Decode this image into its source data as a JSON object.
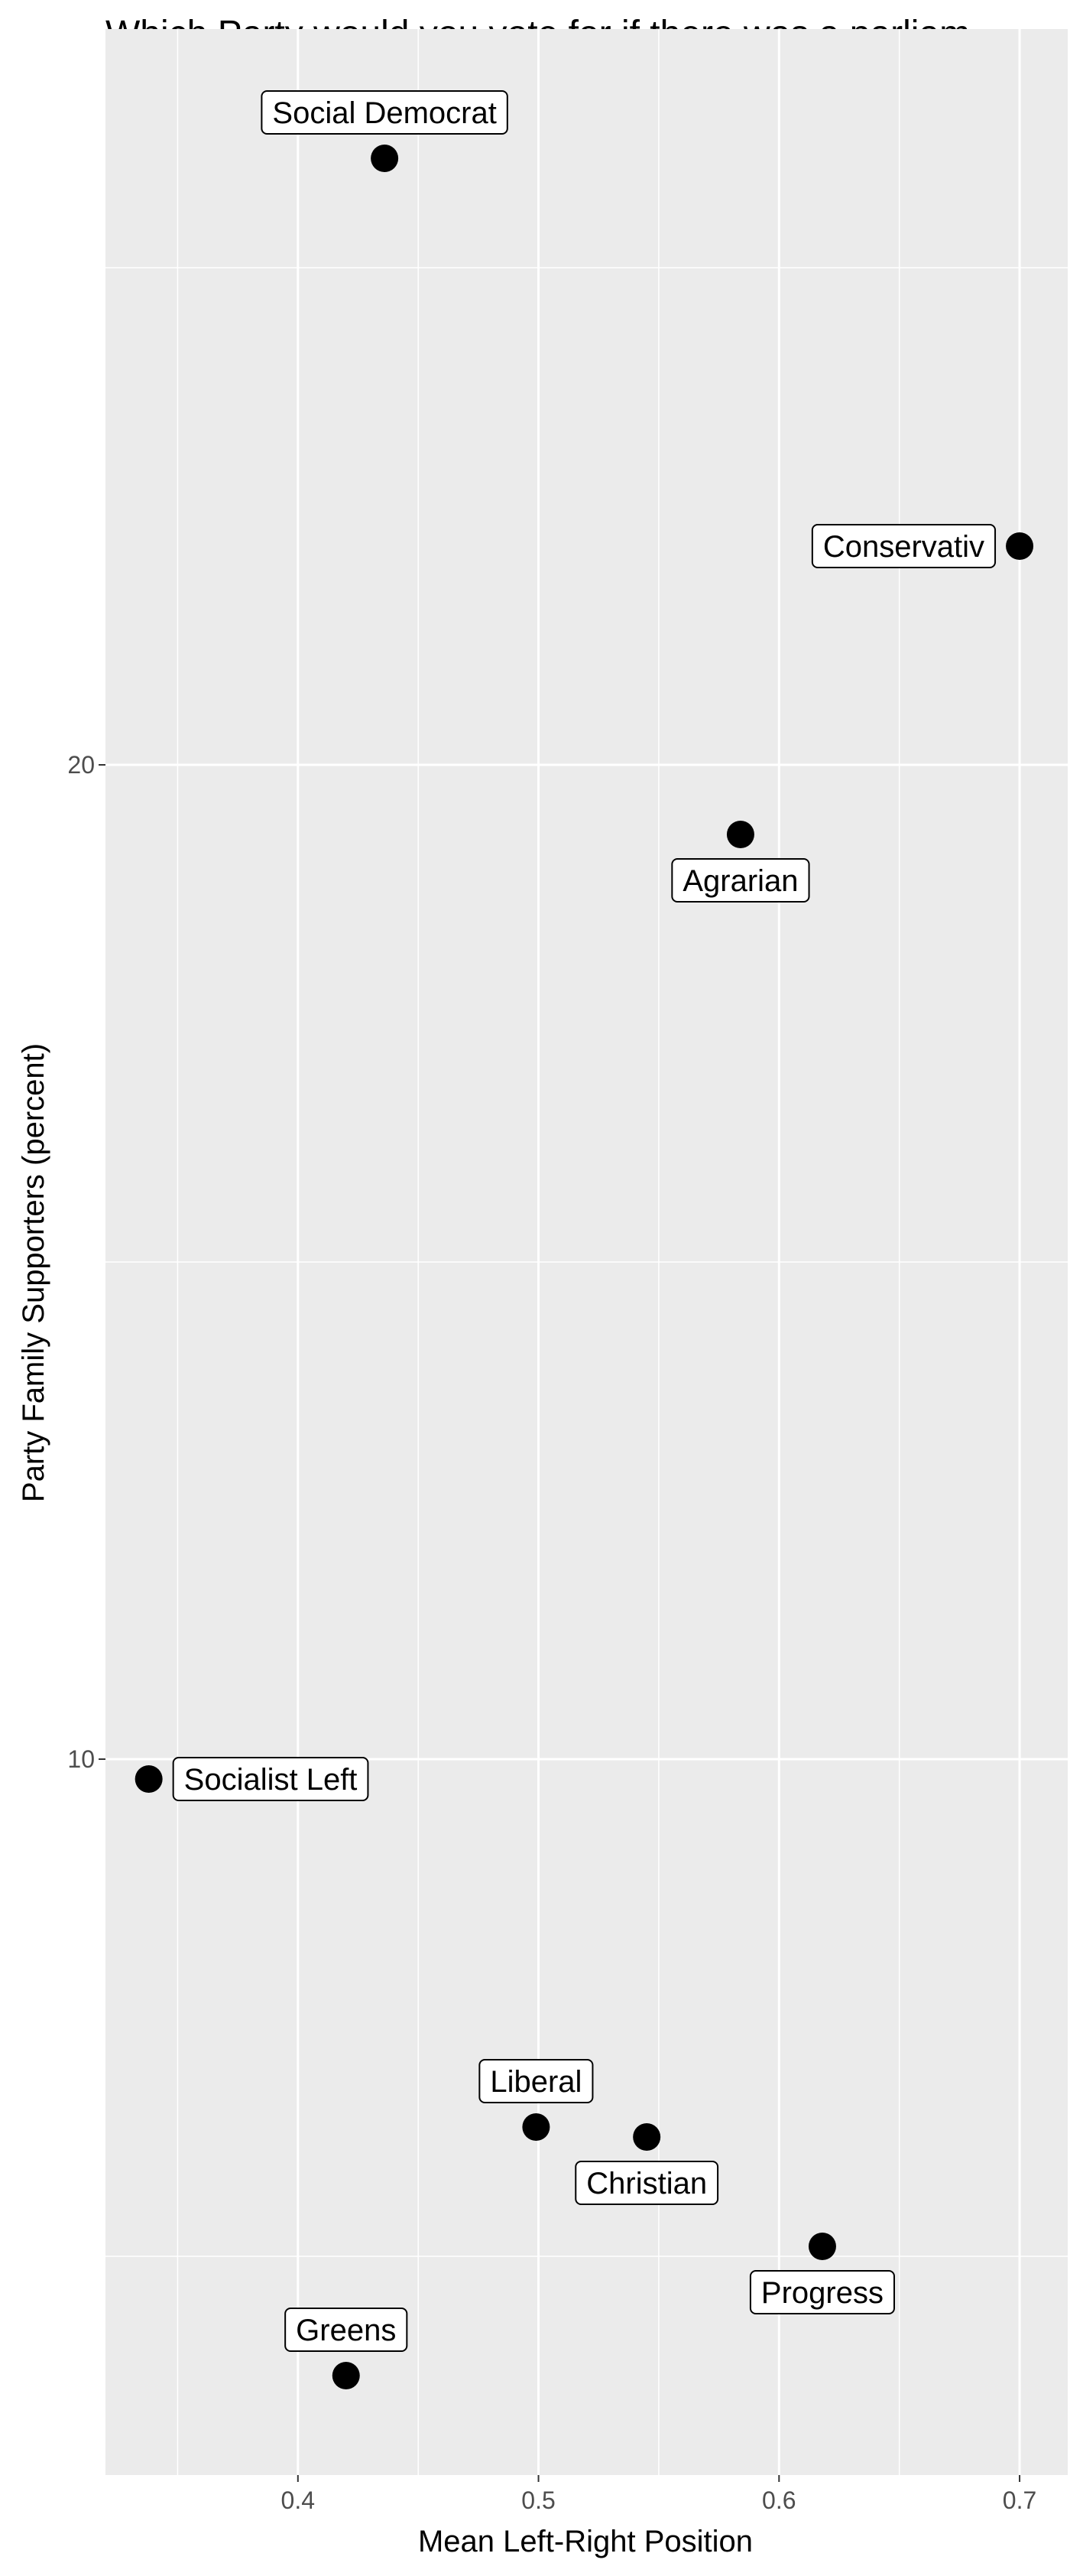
{
  "chart_data": {
    "type": "scatter",
    "title": "Which Party would you vote for if there was a parliam",
    "xlabel": "Mean Left-Right Position",
    "ylabel": "Party Family Supporters (percent)",
    "xlim": [
      0.32,
      0.72
    ],
    "ylim": [
      2.8,
      27.4
    ],
    "x_ticks": [
      0.4,
      0.5,
      0.6,
      0.7
    ],
    "x_tick_labels": [
      "0.4",
      "0.5",
      "0.6",
      "0.7"
    ],
    "y_ticks": [
      10,
      20
    ],
    "y_tick_labels": [
      "10",
      "20"
    ],
    "grid": true,
    "background": "#ebebeb",
    "grid_color": "#ffffff",
    "point_color": "#000000",
    "label_border_color": "#000000",
    "label_fill_color": "#ffffff",
    "points": [
      {
        "label": "Social Democrat",
        "x": 0.436,
        "y": 26.1,
        "label_position": "above"
      },
      {
        "label": "Conservativ",
        "x": 0.7,
        "y": 22.2,
        "label_position": "left"
      },
      {
        "label": "Agrarian",
        "x": 0.584,
        "y": 19.3,
        "label_position": "below"
      },
      {
        "label": "Socialist Left",
        "x": 0.338,
        "y": 9.8,
        "label_position": "right"
      },
      {
        "label": "Liberal",
        "x": 0.499,
        "y": 6.3,
        "label_position": "above"
      },
      {
        "label": "Christian",
        "x": 0.545,
        "y": 6.2,
        "label_position": "below"
      },
      {
        "label": "Progress",
        "x": 0.618,
        "y": 5.1,
        "label_position": "below"
      },
      {
        "label": "Greens",
        "x": 0.42,
        "y": 3.8,
        "label_position": "above"
      }
    ]
  }
}
